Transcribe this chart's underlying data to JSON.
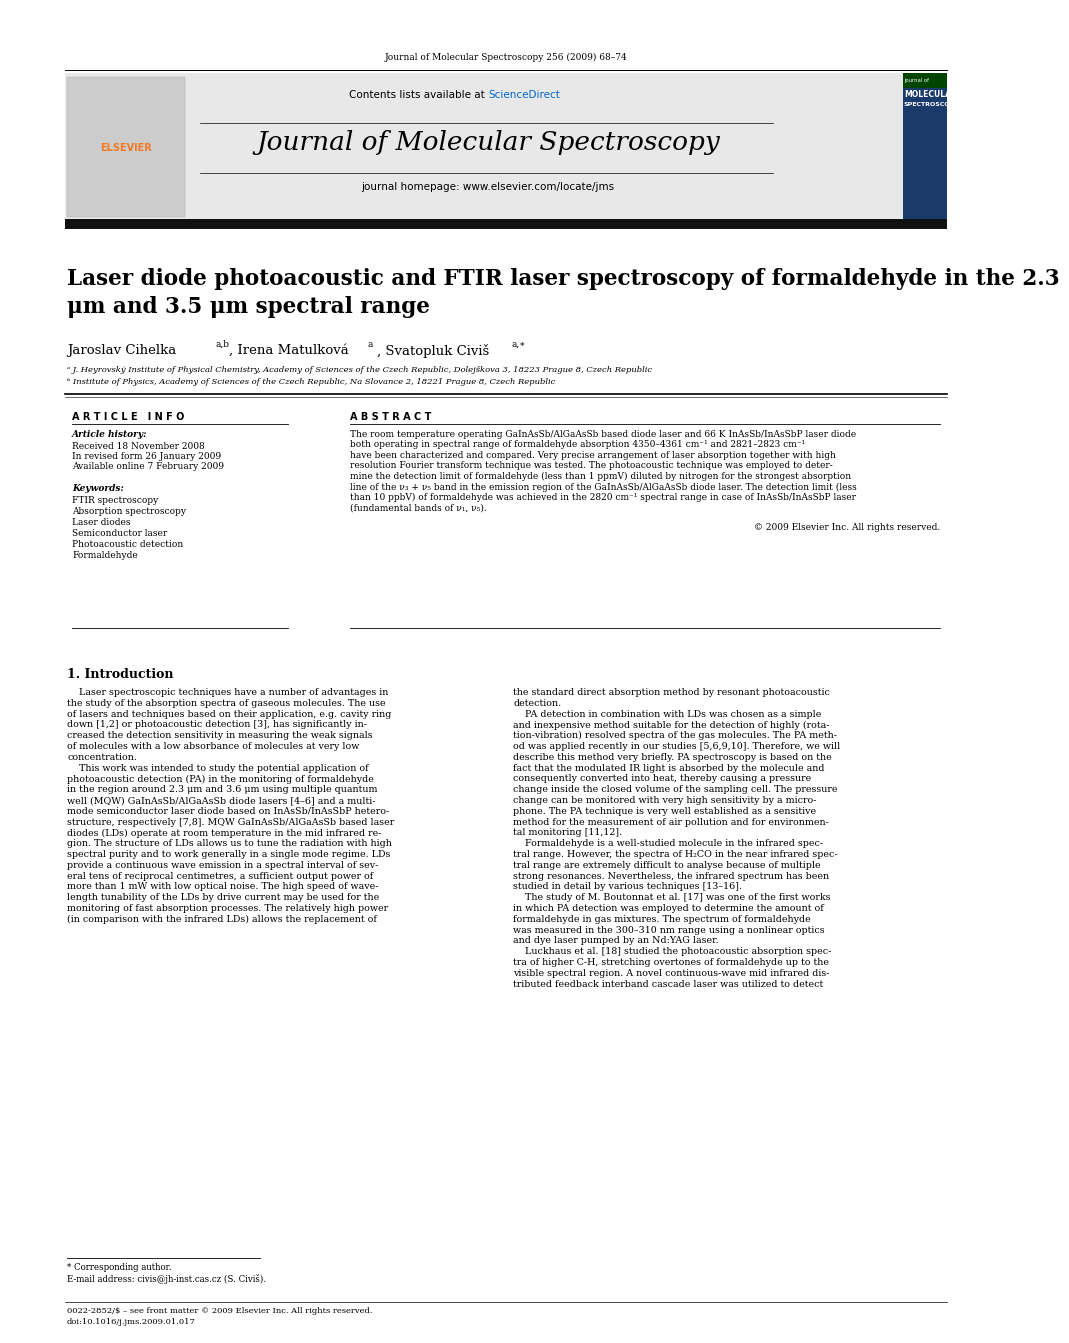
{
  "page_width": 9.92,
  "page_height": 13.23,
  "bg_color": "#ffffff",
  "journal_ref": "Journal of Molecular Spectroscopy 256 (2009) 68–74",
  "journal_name": "Journal of Molecular Spectroscopy",
  "journal_homepage": "journal homepage: www.elsevier.com/locate/jms",
  "contents_line": "Contents lists available at ScienceDirect",
  "title": "Laser diode photoacoustic and FTIR laser spectroscopy of formaldehyde in the 2.3\nμm and 3.5 μm spectral range",
  "affil_a": "ᵃ J. Heyrovský Institute of Physical Chemistry, Academy of Sciences of the Czech Republic, Dolejškova 3, 18223 Prague 8, Czech Republic",
  "affil_b": "ᵇ Institute of Physics, Academy of Sciences of the Czech Republic, Na Slovance 2, 18221 Prague 8, Czech Republic",
  "article_info_label": "A R T I C L E   I N F O",
  "abstract_label": "A B S T R A C T",
  "article_history_label": "Article history:",
  "received": "Received 18 November 2008",
  "revised": "In revised form 26 January 2009",
  "available": "Available online 7 February 2009",
  "keywords_label": "Keywords:",
  "keywords": [
    "FTIR spectroscopy",
    "Absorption spectroscopy",
    "Laser diodes",
    "Semiconductor laser",
    "Photoacoustic detection",
    "Formaldehyde"
  ],
  "abstract_lines": [
    "The room temperature operating GaInAsSb/AlGaAsSb based diode laser and 66 K InAsSb/InAsSbP laser diode",
    "both operating in spectral range of formaldehyde absorption 4350–4361 cm⁻¹ and 2821–2823 cm⁻¹",
    "have been characterized and compared. Very precise arrangement of laser absorption together with high",
    "resolution Fourier transform technique was tested. The photoacoustic technique was employed to deter-",
    "mine the detection limit of formaldehyde (less than 1 ppmV) diluted by nitrogen for the strongest absorption",
    "line of the ν₃ + ν₅ band in the emission region of the GaInAsSb/AlGaAsSb diode laser. The detection limit (less",
    "than 10 ppbV) of formaldehyde was achieved in the 2820 cm⁻¹ spectral range in case of InAsSb/InAsSbP laser",
    "(fundamental bands of ν₁, ν₅)."
  ],
  "copyright": "© 2009 Elsevier Inc. All rights reserved.",
  "intro_heading": "1. Introduction",
  "intro_col1_lines": [
    "    Laser spectroscopic techniques have a number of advantages in",
    "the study of the absorption spectra of gaseous molecules. The use",
    "of lasers and techniques based on their application, e.g. cavity ring",
    "down [1,2] or photoacoustic detection [3], has significantly in-",
    "creased the detection sensitivity in measuring the weak signals",
    "of molecules with a low absorbance of molecules at very low",
    "concentration.",
    "    This work was intended to study the potential application of",
    "photoacoustic detection (PA) in the monitoring of formaldehyde",
    "in the region around 2.3 μm and 3.6 μm using multiple quantum",
    "well (MQW) GaInAsSb/AlGaAsSb diode lasers [4–6] and a multi-",
    "mode semiconductor laser diode based on InAsSb/InAsSbP hetero-",
    "structure, respectively [7,8]. MQW GaInAsSb/AlGaAsSb based laser",
    "diodes (LDs) operate at room temperature in the mid infrared re-",
    "gion. The structure of LDs allows us to tune the radiation with high",
    "spectral purity and to work generally in a single mode regime. LDs",
    "provide a continuous wave emission in a spectral interval of sev-",
    "eral tens of reciprocal centimetres, a sufficient output power of",
    "more than 1 mW with low optical noise. The high speed of wave-",
    "length tunability of the LDs by drive current may be used for the",
    "monitoring of fast absorption processes. The relatively high power",
    "(in comparison with the infrared LDs) allows the replacement of"
  ],
  "intro_col2_lines": [
    "the standard direct absorption method by resonant photoacoustic",
    "detection.",
    "    PA detection in combination with LDs was chosen as a simple",
    "and inexpensive method suitable for the detection of highly (rota-",
    "tion-vibration) resolved spectra of the gas molecules. The PA meth-",
    "od was applied recently in our studies [5,6,9,10]. Therefore, we will",
    "describe this method very briefly. PA spectroscopy is based on the",
    "fact that the modulated IR light is absorbed by the molecule and",
    "consequently converted into heat, thereby causing a pressure",
    "change inside the closed volume of the sampling cell. The pressure",
    "change can be monitored with very high sensitivity by a micro-",
    "phone. The PA technique is very well established as a sensitive",
    "method for the measurement of air pollution and for environmen-",
    "tal monitoring [11,12].",
    "    Formaldehyde is a well-studied molecule in the infrared spec-",
    "tral range. However, the spectra of H₂CO in the near infrared spec-",
    "tral range are extremely difficult to analyse because of multiple",
    "strong resonances. Nevertheless, the infrared spectrum has been",
    "studied in detail by various techniques [13–16].",
    "    The study of M. Boutonnat et al. [17] was one of the first works",
    "in which PA detection was employed to determine the amount of",
    "formaldehyde in gas mixtures. The spectrum of formaldehyde",
    "was measured in the 300–310 nm range using a nonlinear optics",
    "and dye laser pumped by an Nd:YAG laser.",
    "    Luckhaus et al. [18] studied the photoacoustic absorption spec-",
    "tra of higher C-H, stretching overtones of formaldehyde up to the",
    "visible spectral region. A novel continuous-wave mid infrared dis-",
    "tributed feedback interband cascade laser was utilized to detect"
  ],
  "footnote_corresponding": "* Corresponding author.",
  "footnote_email": "E-mail address: civis@jh-inst.cas.cz (S. Civiš).",
  "footer_issn": "0022-2852/$ – see front matter © 2009 Elsevier Inc. All rights reserved.",
  "footer_doi": "doi:10.1016/j.jms.2009.01.017",
  "header_bg": "#e8e8e8",
  "black_bar_color": "#111111",
  "elsevier_orange": "#f47920",
  "sciencedirect_blue": "#0066cc",
  "cover_blue": "#1a3a6b"
}
